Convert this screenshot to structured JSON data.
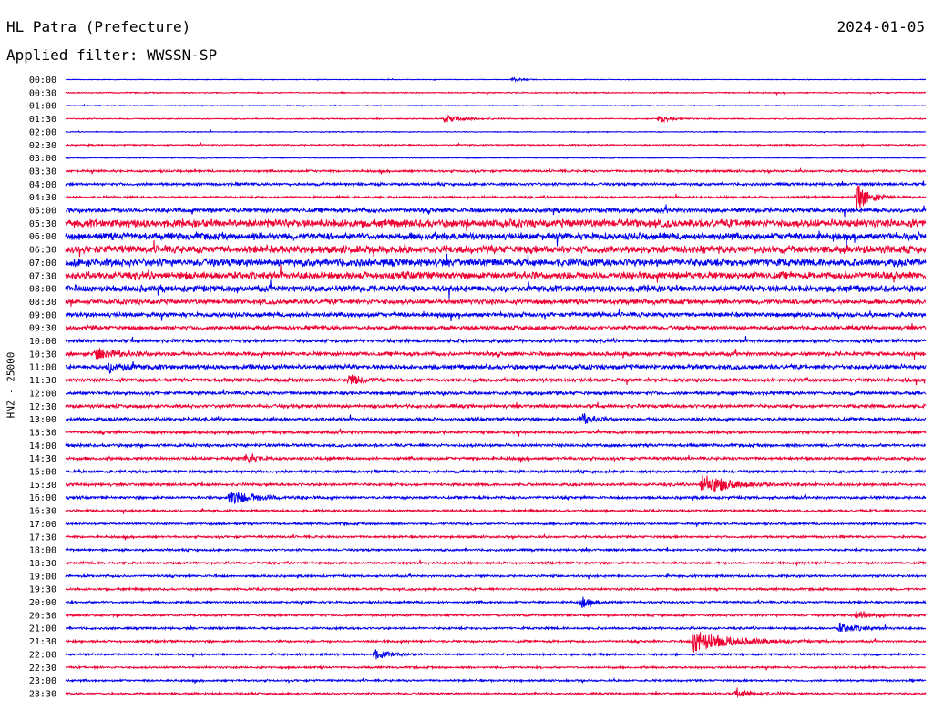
{
  "header": {
    "station": "HL Patra (Prefecture)",
    "date": "2024-01-05",
    "filter": "Applied filter: WWSSN-SP"
  },
  "chart_data": {
    "type": "line",
    "title": "HL Patra (Prefecture)",
    "subtitle": "Applied filter: WWSSN-SP",
    "ylabel": "HNZ - 25000",
    "xlabel": "",
    "colors": [
      "#0000ee",
      "#ee0033"
    ],
    "row_labels": [
      "00:00",
      "00:30",
      "01:00",
      "01:30",
      "02:00",
      "02:30",
      "03:00",
      "03:30",
      "04:00",
      "04:30",
      "05:00",
      "05:30",
      "06:00",
      "06:30",
      "07:00",
      "07:30",
      "08:00",
      "08:30",
      "09:00",
      "09:30",
      "10:00",
      "10:30",
      "11:00",
      "11:30",
      "12:00",
      "12:30",
      "13:00",
      "13:30",
      "14:00",
      "14:30",
      "15:00",
      "15:30",
      "16:00",
      "16:30",
      "17:00",
      "17:30",
      "18:00",
      "18:30",
      "19:00",
      "19:30",
      "20:00",
      "20:30",
      "21:00",
      "21:30",
      "22:00",
      "22:30",
      "23:00",
      "23:30"
    ],
    "noise_level": [
      0.3,
      0.5,
      0.4,
      0.5,
      0.4,
      0.6,
      0.4,
      1.0,
      1.2,
      1.0,
      2.0,
      3.5,
      3.2,
      3.5,
      3.5,
      3.3,
      3.0,
      2.2,
      2.0,
      1.8,
      1.5,
      1.8,
      2.0,
      1.6,
      1.5,
      1.5,
      1.4,
      1.3,
      1.3,
      1.3,
      1.2,
      1.2,
      1.2,
      1.0,
      1.0,
      1.0,
      1.0,
      1.0,
      1.0,
      1.0,
      1.0,
      1.0,
      1.0,
      1.0,
      0.9,
      0.9,
      0.9,
      0.9
    ],
    "events": [
      {
        "row": 0,
        "t": 0.52,
        "amp": 2,
        "dur": 0.01
      },
      {
        "row": 3,
        "t": 0.44,
        "amp": 4,
        "dur": 0.02
      },
      {
        "row": 3,
        "t": 0.69,
        "amp": 4,
        "dur": 0.015
      },
      {
        "row": 9,
        "t": 0.92,
        "amp": 14,
        "dur": 0.015
      },
      {
        "row": 21,
        "t": 0.035,
        "amp": 7,
        "dur": 0.02
      },
      {
        "row": 22,
        "t": 0.05,
        "amp": 5,
        "dur": 0.02
      },
      {
        "row": 23,
        "t": 0.33,
        "amp": 6,
        "dur": 0.015
      },
      {
        "row": 26,
        "t": 0.6,
        "amp": 7,
        "dur": 0.01
      },
      {
        "row": 29,
        "t": 0.21,
        "amp": 6,
        "dur": 0.01
      },
      {
        "row": 31,
        "t": 0.74,
        "amp": 11,
        "dur": 0.03
      },
      {
        "row": 32,
        "t": 0.19,
        "amp": 7,
        "dur": 0.03
      },
      {
        "row": 40,
        "t": 0.6,
        "amp": 6,
        "dur": 0.01
      },
      {
        "row": 41,
        "t": 0.92,
        "amp": 5,
        "dur": 0.02
      },
      {
        "row": 42,
        "t": 0.9,
        "amp": 5,
        "dur": 0.02
      },
      {
        "row": 43,
        "t": 0.73,
        "amp": 12,
        "dur": 0.04
      },
      {
        "row": 44,
        "t": 0.36,
        "amp": 5,
        "dur": 0.015
      },
      {
        "row": 47,
        "t": 0.78,
        "amp": 4,
        "dur": 0.02
      }
    ]
  }
}
